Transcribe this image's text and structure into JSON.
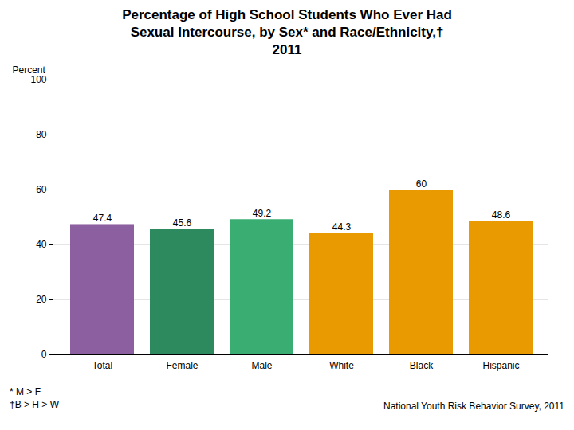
{
  "chart_data": {
    "type": "bar",
    "title": "Percentage of High School Students Who Ever Had\nSexual Intercourse, by Sex* and Race/Ethnicity,†\n2011",
    "categories": [
      "Total",
      "Female",
      "Male",
      "White",
      "Black",
      "Hispanic"
    ],
    "values": [
      47.4,
      45.6,
      49.2,
      44.3,
      60.0,
      48.6
    ],
    "colors": [
      "#8B5FA0",
      "#2D8A5E",
      "#3AAD72",
      "#E89A00",
      "#E89A00",
      "#E89A00"
    ],
    "ylabel": "Percent",
    "ylim": [
      0,
      100
    ],
    "yticks": [
      0,
      20,
      40,
      60,
      80,
      100
    ],
    "grid": true,
    "data_labels": true,
    "annotations": [
      "* M > F",
      "†B > H > W"
    ],
    "source": "National Youth Risk Behavior Survey, 2011"
  }
}
